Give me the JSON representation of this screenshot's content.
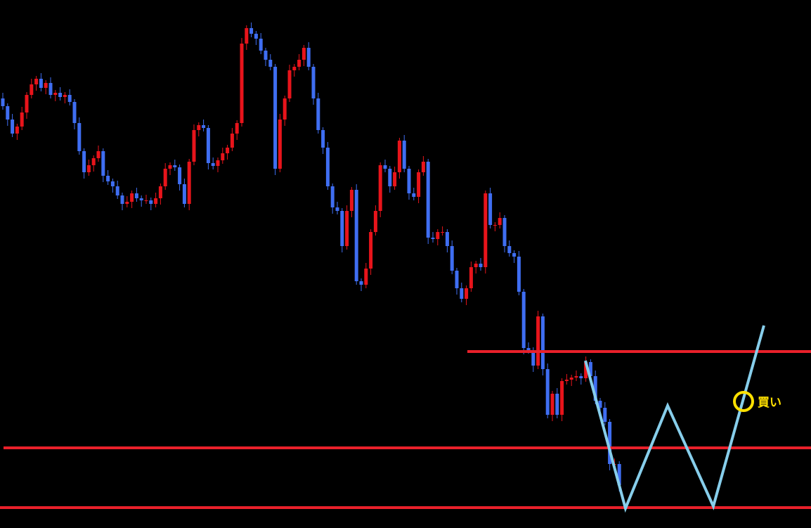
{
  "chart_data": {
    "type": "candlestick",
    "ylim": [
      0,
      751
    ],
    "up_color": "#e8141b",
    "down_color": "#3f6ef2",
    "background": "#000000",
    "open": [
      611,
      600,
      581,
      561,
      571,
      591,
      616,
      631,
      639,
      626,
      633,
      616,
      619,
      613,
      616,
      606,
      576,
      536,
      506,
      516,
      526,
      536,
      501,
      493,
      486,
      473,
      461,
      464,
      476,
      469,
      466,
      466,
      461,
      469,
      486,
      511,
      516,
      513,
      489,
      461,
      521,
      566,
      573,
      569,
      519,
      515,
      523,
      533,
      541,
      561,
      576,
      689,
      711,
      703,
      696,
      679,
      666,
      656,
      511,
      581,
      611,
      651,
      656,
      666,
      683,
      656,
      611,
      566,
      541,
      486,
      456,
      451,
      401,
      451,
      481,
      351,
      346,
      369,
      421,
      451,
      516,
      511,
      486,
      506,
      551,
      511,
      476,
      471,
      506,
      521,
      413,
      411,
      421,
      421,
      401,
      366,
      341,
      326,
      341,
      371,
      376,
      371,
      476,
      431,
      431,
      441,
      401,
      391,
      386,
      336,
      256,
      253,
      231,
      301,
      226,
      161,
      191,
      161,
      209,
      211,
      214,
      216,
      213,
      236,
      216,
      181,
      171,
      151,
      91,
      91
    ],
    "high": [
      619,
      604,
      589,
      575,
      599,
      620,
      639,
      643,
      647,
      637,
      641,
      623,
      627,
      620,
      624,
      610,
      584,
      540,
      524,
      530,
      544,
      540,
      509,
      497,
      494,
      477,
      472,
      480,
      484,
      473,
      474,
      470,
      477,
      490,
      519,
      520,
      524,
      517,
      497,
      525,
      574,
      577,
      581,
      573,
      527,
      527,
      541,
      545,
      569,
      580,
      697,
      715,
      719,
      707,
      704,
      683,
      674,
      660,
      589,
      615,
      659,
      660,
      674,
      687,
      691,
      660,
      619,
      570,
      549,
      490,
      464,
      455,
      459,
      485,
      489,
      355,
      377,
      425,
      459,
      520,
      524,
      515,
      514,
      555,
      559,
      515,
      484,
      510,
      529,
      525,
      421,
      425,
      429,
      425,
      409,
      370,
      349,
      345,
      379,
      380,
      384,
      480,
      484,
      435,
      449,
      445,
      409,
      395,
      394,
      340,
      264,
      257,
      309,
      305,
      234,
      195,
      199,
      213,
      219,
      218,
      224,
      220,
      244,
      240,
      224,
      185,
      179,
      155,
      99,
      95
    ],
    "low": [
      595,
      572,
      556,
      552,
      566,
      582,
      611,
      622,
      621,
      617,
      611,
      607,
      608,
      604,
      601,
      567,
      531,
      497,
      501,
      507,
      521,
      492,
      488,
      477,
      468,
      452,
      456,
      455,
      464,
      457,
      461,
      452,
      456,
      460,
      481,
      502,
      508,
      480,
      456,
      452,
      516,
      557,
      564,
      510,
      510,
      506,
      518,
      524,
      536,
      552,
      571,
      680,
      698,
      687,
      674,
      657,
      651,
      502,
      506,
      572,
      606,
      642,
      651,
      657,
      651,
      602,
      561,
      532,
      481,
      447,
      446,
      392,
      396,
      442,
      346,
      337,
      341,
      360,
      416,
      442,
      506,
      477,
      481,
      497,
      506,
      467,
      466,
      462,
      501,
      404,
      406,
      402,
      416,
      392,
      361,
      332,
      321,
      317,
      336,
      362,
      366,
      362,
      426,
      422,
      426,
      392,
      386,
      377,
      331,
      247,
      248,
      222,
      226,
      217,
      156,
      152,
      156,
      152,
      204,
      202,
      209,
      204,
      208,
      207,
      176,
      162,
      146,
      82,
      86,
      52
    ],
    "close": [
      600,
      581,
      561,
      571,
      591,
      616,
      631,
      639,
      626,
      633,
      616,
      619,
      613,
      616,
      606,
      576,
      536,
      506,
      516,
      526,
      536,
      501,
      493,
      486,
      473,
      461,
      464,
      476,
      469,
      466,
      466,
      461,
      469,
      486,
      511,
      516,
      513,
      489,
      461,
      521,
      566,
      573,
      569,
      519,
      515,
      523,
      533,
      541,
      561,
      576,
      689,
      711,
      703,
      696,
      679,
      666,
      656,
      511,
      581,
      611,
      651,
      656,
      666,
      683,
      656,
      611,
      566,
      541,
      486,
      456,
      451,
      401,
      451,
      481,
      351,
      346,
      369,
      421,
      451,
      516,
      511,
      486,
      506,
      551,
      511,
      476,
      471,
      506,
      521,
      413,
      411,
      421,
      421,
      401,
      366,
      341,
      326,
      341,
      371,
      376,
      371,
      476,
      431,
      431,
      441,
      401,
      391,
      386,
      336,
      256,
      253,
      231,
      301,
      226,
      161,
      191,
      161,
      209,
      211,
      214,
      216,
      213,
      236,
      216,
      181,
      171,
      151,
      91,
      91,
      61
    ],
    "levels": {
      "color": "#e8202a",
      "values": [
        251,
        114,
        29
      ]
    },
    "pattern": {
      "color": "#87ceeb",
      "values": [
        238,
        28,
        174,
        31,
        288
      ]
    },
    "annotation": {
      "label": "買い",
      "value": 180,
      "color": "#ffe000"
    }
  }
}
